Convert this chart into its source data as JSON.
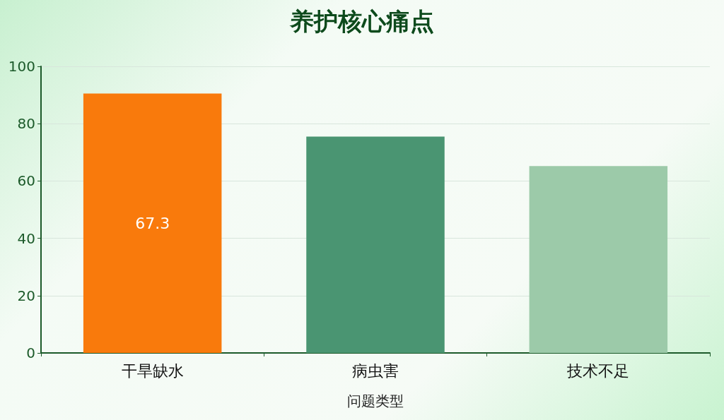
{
  "chart_data": {
    "type": "bar",
    "title": "养护核心痛点",
    "xlabel": "问题类型",
    "categories": [
      "干旱缺水",
      "病虫害",
      "技术不足"
    ],
    "values": [
      90.5,
      75.5,
      65.2
    ],
    "colors": [
      "#f97a0c",
      "#4a9572",
      "#9ccaa9"
    ],
    "annotations": [
      "67.3"
    ],
    "ylim": [
      0,
      100
    ],
    "yticks": [
      0,
      20,
      40,
      60,
      80,
      100
    ],
    "grid": "y"
  }
}
